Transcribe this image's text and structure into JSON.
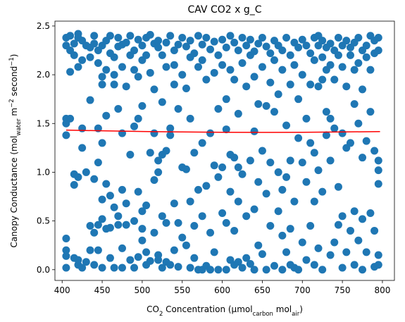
{
  "chart_data": {
    "type": "scatter",
    "title": "CAV CO2 x g_C",
    "xlabel": [
      {
        "text": "CO"
      },
      {
        "text": "2",
        "sub": true
      },
      {
        "text": " Concentration (μmol"
      },
      {
        "text": "carbon",
        "sub": true
      },
      {
        "text": " mol"
      },
      {
        "text": "air",
        "sub": true
      },
      {
        "text": ")"
      }
    ],
    "ylabel": [
      {
        "text": "Canopy Conductance (mol"
      },
      {
        "text": "water",
        "sub": true
      },
      {
        "text": " m"
      },
      {
        "text": "−2",
        "sup": true
      },
      {
        "text": " second"
      },
      {
        "text": "−1",
        "sup": true
      },
      {
        "text": ")"
      }
    ],
    "xlim": [
      391,
      815
    ],
    "ylim": [
      -0.11,
      2.55
    ],
    "xticks": [
      400,
      450,
      500,
      550,
      600,
      650,
      700,
      750,
      800
    ],
    "yticks": [
      {
        "value": 0,
        "label": "0.0"
      },
      0.5,
      {
        "value": 1,
        "label": "1.0"
      },
      1.5,
      {
        "value": 2,
        "label": "2.0"
      },
      2.5
    ],
    "series": [
      {
        "color": "#1f77b4",
        "style": "points",
        "x": [
          405,
          405,
          405,
          405,
          405,
          405,
          405,
          405,
          405,
          410,
          410,
          410,
          410,
          415,
          415,
          415,
          415,
          415,
          420,
          420,
          420,
          420,
          420,
          420,
          425,
          425,
          425,
          425,
          425,
          430,
          430,
          430,
          435,
          435,
          435,
          435,
          435,
          440,
          440,
          440,
          440,
          440,
          445,
          445,
          445,
          445,
          445,
          445,
          450,
          450,
          450,
          450,
          450,
          450,
          450,
          455,
          455,
          455,
          455,
          455,
          460,
          460,
          460,
          460,
          460,
          465,
          465,
          465,
          465,
          465,
          470,
          470,
          470,
          470,
          470,
          475,
          475,
          475,
          475,
          475,
          475,
          480,
          480,
          480,
          480,
          485,
          485,
          485,
          485,
          490,
          490,
          490,
          490,
          490,
          495,
          495,
          495,
          495,
          495,
          500,
          500,
          500,
          500,
          500,
          500,
          505,
          505,
          505,
          505,
          505,
          510,
          510,
          510,
          510,
          515,
          515,
          515,
          515,
          515,
          520,
          520,
          520,
          520,
          520,
          520,
          525,
          525,
          525,
          525,
          525,
          530,
          530,
          530,
          530,
          530,
          535,
          535,
          535,
          535,
          540,
          540,
          540,
          540,
          540,
          545,
          545,
          545,
          545,
          550,
          550,
          550,
          550,
          555,
          555,
          555,
          555,
          560,
          560,
          560,
          560,
          560,
          565,
          565,
          565,
          565,
          570,
          570,
          570,
          570,
          575,
          575,
          575,
          575,
          575,
          580,
          580,
          580,
          580,
          585,
          585,
          585,
          585,
          590,
          590,
          590,
          590,
          595,
          595,
          595,
          595,
          600,
          600,
          600,
          600,
          605,
          605,
          605,
          605,
          605,
          610,
          610,
          610,
          610,
          610,
          615,
          615,
          615,
          615,
          615,
          620,
          620,
          620,
          620,
          620,
          625,
          625,
          625,
          625,
          630,
          630,
          630,
          630,
          635,
          635,
          635,
          635,
          640,
          640,
          640,
          640,
          640,
          645,
          645,
          645,
          645,
          650,
          650,
          650,
          650,
          655,
          655,
          655,
          655,
          660,
          660,
          660,
          660,
          665,
          665,
          665,
          665,
          670,
          670,
          670,
          670,
          675,
          675,
          675,
          675,
          675,
          680,
          680,
          680,
          680,
          685,
          685,
          685,
          685,
          685,
          690,
          690,
          690,
          690,
          695,
          695,
          695,
          695,
          700,
          700,
          700,
          700,
          705,
          705,
          705,
          705,
          710,
          710,
          710,
          710,
          715,
          715,
          715,
          715,
          715,
          720,
          720,
          720,
          720,
          720,
          725,
          725,
          725,
          725,
          725,
          730,
          730,
          730,
          730,
          735,
          735,
          735,
          735,
          735,
          740,
          740,
          740,
          740,
          745,
          745,
          745,
          745,
          750,
          750,
          750,
          750,
          750,
          755,
          755,
          755,
          755,
          760,
          760,
          760,
          760,
          765,
          765,
          765,
          765,
          765,
          770,
          770,
          770,
          770,
          775,
          775,
          775,
          775,
          775,
          780,
          780,
          780,
          780,
          785,
          785,
          785,
          785,
          790,
          790,
          790,
          790,
          790,
          795,
          795,
          795,
          795,
          795,
          795,
          795
        ],
        "values": [
          2.38,
          2.3,
          1.55,
          1.5,
          1.38,
          0.32,
          0.2,
          0.14,
          0.02,
          2.4,
          2.25,
          2.03,
          1.55,
          2.32,
          2.2,
          0.98,
          0.87,
          0.12,
          2.42,
          2.38,
          2.08,
          0.95,
          0.05,
          0.1,
          2.35,
          2.15,
          1.45,
          1.25,
          0.02,
          2.3,
          1.0,
          0.08,
          2.28,
          2.18,
          1.74,
          0.45,
          0.2,
          2.4,
          2.32,
          0.93,
          0.38,
          0.05,
          2.25,
          2.12,
          1.45,
          1.1,
          0.46,
          0.2,
          2.3,
          1.98,
          1.9,
          1.3,
          0.72,
          0.52,
          0.02,
          2.35,
          2.05,
          1.58,
          0.88,
          0.42,
          2.4,
          2.22,
          0.76,
          0.43,
          0.12,
          2.18,
          2.0,
          1.9,
          0.64,
          0.02,
          2.38,
          2.29,
          1.65,
          0.55,
          0.46,
          2.31,
          2.08,
          1.4,
          0.82,
          0.22,
          0.02,
          2.33,
          1.88,
          0.68,
          0.46,
          2.4,
          2.2,
          1.18,
          0.1,
          2.25,
          2.05,
          1.47,
          0.5,
          0.02,
          2.36,
          1.98,
          1.55,
          0.8,
          0.13,
          2.3,
          2.15,
          1.68,
          0.6,
          0.42,
          0.3,
          2.38,
          2.2,
          0.66,
          0.18,
          0.05,
          2.41,
          2.02,
          1.2,
          0.09,
          2.32,
          1.85,
          1.4,
          0.92,
          0.38,
          2.35,
          2.28,
          1.12,
          1.0,
          0.15,
          0.1,
          2.2,
          1.72,
          1.18,
          0.55,
          0.02,
          2.33,
          2.08,
          1.22,
          0.48,
          0.08,
          2.4,
          1.45,
          1.38,
          0.05,
          2.25,
          2.1,
          1.9,
          0.68,
          0.2,
          2.31,
          1.65,
          0.48,
          0.03,
          2.38,
          2.0,
          1.05,
          0.33,
          2.29,
          1.86,
          1.03,
          0.25,
          2.35,
          2.18,
          1.55,
          0.7,
          0.02,
          2.22,
          1.2,
          0.45,
          0.12,
          2.4,
          2.08,
          0.82,
          0.0,
          2.31,
          2.15,
          1.3,
          0.55,
          0.0,
          2.38,
          1.95,
          0.86,
          0.04,
          2.26,
          1.4,
          0.38,
          0.0,
          2.34,
          2.02,
          1.07,
          0.18,
          2.2,
          1.65,
          0.95,
          0.0,
          2.36,
          2.1,
          1.05,
          0.58,
          2.28,
          1.75,
          1.44,
          0.48,
          0.0,
          2.4,
          2.05,
          1.18,
          0.8,
          0.1,
          2.33,
          1.95,
          1.15,
          0.4,
          0.05,
          2.25,
          1.6,
          1.05,
          0.7,
          0.08,
          2.38,
          2.12,
          0.98,
          0.02,
          2.3,
          1.88,
          0.55,
          0.12,
          2.36,
          2.2,
          1.12,
          0.06,
          2.24,
          1.98,
          1.42,
          0.62,
          0.0,
          2.32,
          1.7,
          0.9,
          0.25,
          2.38,
          2.08,
          1.22,
          0.16,
          2.29,
          1.68,
          0.78,
          0.0,
          2.22,
          1.92,
          1.1,
          0.45,
          2.35,
          2.15,
          1.62,
          0.04,
          2.3,
          1.8,
          1.0,
          0.6,
          2.25,
          2.05,
          0.82,
          0.35,
          0.0,
          2.38,
          1.48,
          0.95,
          0.18,
          2.2,
          1.9,
          1.12,
          0.42,
          0.05,
          2.33,
          2.1,
          0.7,
          0.02,
          2.28,
          1.75,
          1.35,
          0.0,
          2.36,
          2.0,
          1.1,
          0.28,
          2.3,
          1.55,
          0.9,
          0.1,
          2.22,
          1.9,
          1.3,
          0.45,
          2.38,
          2.15,
          1.2,
          0.7,
          0.05,
          2.4,
          2.3,
          1.88,
          1.02,
          0.22,
          2.35,
          2.18,
          1.95,
          0.8,
          0.0,
          2.28,
          2.05,
          1.62,
          1.38,
          2.32,
          2.1,
          1.55,
          1.12,
          0.15,
          2.25,
          1.95,
          1.45,
          0.28,
          2.38,
          2.2,
          0.85,
          0.46,
          2.3,
          2.08,
          1.4,
          0.55,
          0.02,
          2.35,
          1.88,
          1.25,
          0.18,
          2.28,
          2.2,
          1.3,
          0.4,
          2.33,
          2.05,
          1.7,
          0.6,
          0.05,
          2.38,
          2.12,
          1.5,
          0.3,
          2.25,
          1.85,
          1.15,
          0.52,
          0.0,
          2.3,
          2.18,
          1.32,
          0.18,
          2.4,
          2.05,
          1.62,
          0.58,
          2.35,
          2.22,
          1.22,
          0.4,
          0.03,
          2.38,
          2.25,
          1.12,
          1.02,
          0.88,
          0.15,
          0.05
        ]
      },
      {
        "color": "#ff0000",
        "style": "line",
        "x": [
          405,
          450,
          500,
          550,
          600,
          650,
          700,
          750,
          797
        ],
        "values": [
          1.432,
          1.425,
          1.418,
          1.413,
          1.41,
          1.409,
          1.41,
          1.413,
          1.417
        ]
      }
    ]
  }
}
